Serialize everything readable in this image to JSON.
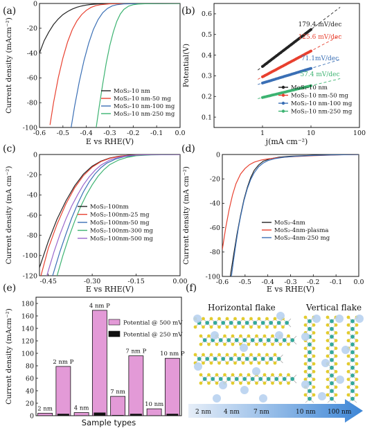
{
  "panels": {
    "a": {
      "label": "(a)"
    },
    "b": {
      "label": "(b)"
    },
    "c": {
      "label": "(c)"
    },
    "d": {
      "label": "(d)"
    },
    "e": {
      "label": "(e)"
    },
    "f": {
      "label": "(f)"
    }
  },
  "chart_data": [
    {
      "id": "a",
      "type": "line",
      "xlabel": "E vs RHE(V)",
      "ylabel": "Current density (mAcm⁻²)",
      "xlim": [
        -0.6,
        0.0
      ],
      "ylim": [
        -100,
        0
      ],
      "xticks": [
        -0.6,
        -0.5,
        -0.4,
        -0.3,
        -0.2,
        -0.1,
        0.0
      ],
      "xticklabels": [
        "-0.6",
        "-0.5",
        "-0.4",
        "-0.3",
        "-0.2",
        "-0.1",
        "0.0"
      ],
      "yticks": [
        -100,
        -80,
        -60,
        -40,
        -20,
        0
      ],
      "yticklabels": [
        "-100",
        "-80",
        "-60",
        "-40",
        "-20",
        "0"
      ],
      "legend_position": "lower-right",
      "series": [
        {
          "name": "MoS₂-10 nm",
          "color": "#222222",
          "x": [
            -0.6,
            -0.58,
            -0.56,
            -0.54,
            -0.52,
            -0.5,
            -0.48,
            -0.46,
            -0.44,
            -0.42,
            -0.4,
            -0.38,
            -0.35,
            -0.3,
            -0.2,
            -0.1,
            0.0
          ],
          "y": [
            -40,
            -30,
            -23,
            -17,
            -12.5,
            -9,
            -6.5,
            -4.5,
            -3,
            -2,
            -1.3,
            -0.8,
            -0.4,
            -0.2,
            -0.1,
            -0.05,
            0
          ]
        },
        {
          "name": "MoS₂-10 nm-50 mg",
          "color": "#e8402f",
          "x": [
            -0.555,
            -0.54,
            -0.52,
            -0.5,
            -0.48,
            -0.46,
            -0.44,
            -0.42,
            -0.4,
            -0.38,
            -0.36,
            -0.34,
            -0.3,
            -0.2,
            -0.1,
            0.0
          ],
          "y": [
            -98,
            -80,
            -60,
            -44,
            -31,
            -21,
            -14,
            -9,
            -5.5,
            -3.2,
            -1.8,
            -1,
            -0.3,
            -0.1,
            -0.05,
            0
          ]
        },
        {
          "name": "MoS₂-10 nm-100 mg",
          "color": "#3a6fb5",
          "x": [
            -0.465,
            -0.45,
            -0.43,
            -0.41,
            -0.39,
            -0.37,
            -0.35,
            -0.33,
            -0.31,
            -0.29,
            -0.27,
            -0.24,
            -0.2,
            -0.1,
            0.0
          ],
          "y": [
            -100,
            -83,
            -63,
            -46,
            -32,
            -21,
            -13,
            -7.5,
            -4,
            -2,
            -1,
            -0.4,
            -0.2,
            -0.05,
            0
          ]
        },
        {
          "name": "MoS₂-10 nm-250 mg",
          "color": "#3cb371",
          "x": [
            -0.358,
            -0.345,
            -0.33,
            -0.315,
            -0.3,
            -0.285,
            -0.27,
            -0.255,
            -0.24,
            -0.22,
            -0.2,
            -0.18,
            -0.15,
            -0.1,
            0.0
          ],
          "y": [
            -100,
            -83,
            -65,
            -48,
            -34,
            -23,
            -14.5,
            -8.5,
            -4.8,
            -2.2,
            -1,
            -0.5,
            -0.2,
            -0.05,
            0
          ]
        }
      ]
    },
    {
      "id": "b",
      "type": "scatter",
      "xlabel": "j(mA cm⁻²)",
      "ylabel": "Potential(V)",
      "xscale": "log",
      "xlim": [
        0.1,
        100
      ],
      "ylim": [
        0.05,
        0.65
      ],
      "xticks": [
        1,
        10,
        100
      ],
      "xticklabels": [
        "1",
        "10",
        "100"
      ],
      "yticks": [
        0.1,
        0.2,
        0.3,
        0.4,
        0.5,
        0.6
      ],
      "yticklabels": [
        "0.1",
        "0.2",
        "0.3",
        "0.4",
        "0.5",
        "0.6"
      ],
      "legend_position": "lower-right",
      "series": [
        {
          "name": "MoS₂-10 nm",
          "color": "#222222",
          "slope_label": "179.4 mV/dec",
          "x_range": [
            1,
            10
          ],
          "y_range": [
            0.345,
            0.524
          ]
        },
        {
          "name": "MoS₂-10 nm-50 mg",
          "color": "#e8402f",
          "slope_label": "125.6 mV/dec",
          "x_range": [
            1,
            10
          ],
          "y_range": [
            0.295,
            0.42
          ]
        },
        {
          "name": "MoS₂-10 nm-100 mg",
          "color": "#3a6fb5",
          "slope_label": "71.1mV/dec",
          "x_range": [
            1,
            10
          ],
          "y_range": [
            0.265,
            0.336
          ]
        },
        {
          "name": "MoS₂-10 nm-250 mg",
          "color": "#3cb371",
          "slope_label": "57.4 mV/dec",
          "x_range": [
            1,
            10
          ],
          "y_range": [
            0.195,
            0.252
          ]
        }
      ]
    },
    {
      "id": "c",
      "type": "line",
      "xlabel": "E vs RHE(V)",
      "ylabel": "Current density (mA cm⁻²)",
      "xlim": [
        -0.48,
        0.0
      ],
      "ylim": [
        -120,
        0
      ],
      "xticks": [
        -0.45,
        -0.3,
        -0.15,
        0.0
      ],
      "xticklabels": [
        "-0.45",
        "-0.30",
        "-0.15",
        "0.00"
      ],
      "yticks": [
        -120,
        -100,
        -80,
        -60,
        -40,
        -20,
        0
      ],
      "yticklabels": [
        "-120",
        "-100",
        "-80",
        "-60",
        "-40",
        "-20",
        "0"
      ],
      "legend_position": "lower-right",
      "series": [
        {
          "name": "MoS₂-100nm",
          "color": "#222222",
          "x": [
            -0.48,
            -0.45,
            -0.42,
            -0.39,
            -0.36,
            -0.33,
            -0.3,
            -0.27,
            -0.24,
            -0.21,
            -0.18,
            -0.15,
            -0.1,
            -0.05,
            0.0
          ],
          "y": [
            -112,
            -86,
            -64,
            -46,
            -31,
            -19.5,
            -11.5,
            -6.5,
            -3.5,
            -1.8,
            -0.9,
            -0.4,
            -0.15,
            -0.05,
            0
          ]
        },
        {
          "name": "MoS₂-100nm-25 mg",
          "color": "#e8402f",
          "x": [
            -0.475,
            -0.45,
            -0.42,
            -0.39,
            -0.36,
            -0.33,
            -0.3,
            -0.27,
            -0.24,
            -0.21,
            -0.18,
            -0.15,
            -0.1,
            0.0
          ],
          "y": [
            -120,
            -93,
            -69,
            -49,
            -33,
            -21,
            -12.5,
            -7,
            -3.8,
            -2,
            -1,
            -0.5,
            -0.15,
            0
          ]
        },
        {
          "name": "MoS₂-100nm-50 mg",
          "color": "#3a6fb5",
          "x": [
            -0.435,
            -0.41,
            -0.39,
            -0.37,
            -0.35,
            -0.33,
            -0.31,
            -0.29,
            -0.27,
            -0.25,
            -0.22,
            -0.19,
            -0.15,
            -0.1,
            0.0
          ],
          "y": [
            -120,
            -96,
            -79,
            -63,
            -49,
            -37,
            -27,
            -19,
            -13,
            -8.5,
            -4.5,
            -2.2,
            -0.9,
            -0.3,
            0
          ]
        },
        {
          "name": "MoS₂-100nm-300 mg",
          "color": "#3cb371",
          "x": [
            -0.42,
            -0.4,
            -0.38,
            -0.36,
            -0.34,
            -0.32,
            -0.3,
            -0.28,
            -0.26,
            -0.24,
            -0.21,
            -0.18,
            -0.15,
            -0.1,
            0.0
          ],
          "y": [
            -120,
            -100,
            -82,
            -66,
            -52,
            -40,
            -30,
            -21.5,
            -15,
            -10,
            -5.5,
            -2.8,
            -1.2,
            -0.4,
            0
          ]
        },
        {
          "name": "MoS₂-100nm-500 mg",
          "color": "#9966cc",
          "x": [
            -0.455,
            -0.43,
            -0.41,
            -0.39,
            -0.37,
            -0.35,
            -0.33,
            -0.31,
            -0.29,
            -0.27,
            -0.24,
            -0.21,
            -0.18,
            -0.15,
            -0.1,
            0.0
          ],
          "y": [
            -120,
            -96,
            -79,
            -64,
            -51,
            -40,
            -30,
            -22,
            -15.5,
            -10.5,
            -5.5,
            -2.8,
            -1.3,
            -0.6,
            -0.2,
            0
          ]
        }
      ]
    },
    {
      "id": "d",
      "type": "line",
      "xlabel": "E vs RHE(V)",
      "ylabel": "Current density (mA cm⁻²)",
      "xlim": [
        -0.6,
        0.0
      ],
      "ylim": [
        -100,
        0
      ],
      "xticks": [
        -0.6,
        -0.5,
        -0.4,
        -0.3,
        -0.2,
        -0.1,
        0.0
      ],
      "xticklabels": [
        "-0.6",
        "-0.5",
        "-0.4",
        "-0.3",
        "-0.2",
        "-0.1",
        "0.0"
      ],
      "yticks": [
        -100,
        -80,
        -60,
        -40,
        -20,
        0
      ],
      "yticklabels": [
        "-100",
        "-80",
        "-60",
        "-40",
        "-20",
        "0"
      ],
      "legend_position": "lower-right",
      "series": [
        {
          "name": "MoS₂-4nm",
          "color": "#222222",
          "x": [
            -0.565,
            -0.55,
            -0.535,
            -0.52,
            -0.505,
            -0.49,
            -0.475,
            -0.46,
            -0.44,
            -0.42,
            -0.39,
            -0.35,
            -0.3,
            -0.2,
            -0.1,
            0.0
          ],
          "y": [
            -100,
            -82,
            -65,
            -50,
            -37,
            -27,
            -19,
            -13,
            -8.5,
            -5.5,
            -3.5,
            -2.2,
            -1.4,
            -0.7,
            -0.3,
            0
          ]
        },
        {
          "name": "MoS₂-4nm-plasma",
          "color": "#e8402f",
          "x": [
            -0.6,
            -0.585,
            -0.57,
            -0.555,
            -0.54,
            -0.52,
            -0.5,
            -0.48,
            -0.46,
            -0.43,
            -0.4,
            -0.36,
            -0.3,
            -0.2,
            -0.1,
            0.0
          ],
          "y": [
            -78,
            -60,
            -45,
            -33,
            -24,
            -16,
            -11.5,
            -8.3,
            -6.3,
            -4.6,
            -3.6,
            -2.7,
            -1.9,
            -1,
            -0.4,
            0
          ]
        },
        {
          "name": "MoS₂-4nm-250 mg",
          "color": "#3a6fb5",
          "x": [
            -0.56,
            -0.55,
            -0.54,
            -0.53,
            -0.52,
            -0.505,
            -0.49,
            -0.475,
            -0.46,
            -0.44,
            -0.42,
            -0.4,
            -0.37,
            -0.33,
            -0.28,
            -0.2,
            -0.1,
            0.0
          ],
          "y": [
            -100,
            -86,
            -73,
            -61,
            -51,
            -38,
            -28,
            -20.5,
            -15,
            -10,
            -7,
            -5,
            -3.4,
            -2.3,
            -1.5,
            -0.8,
            -0.3,
            0
          ]
        }
      ]
    },
    {
      "id": "e",
      "type": "bar",
      "xlabel": "Sample types",
      "ylabel": "Current density (mAcm⁻²)",
      "ylim": [
        0,
        190
      ],
      "yticks": [
        0,
        20,
        40,
        60,
        80,
        100,
        120,
        140,
        160,
        180
      ],
      "yticklabels": [
        "0",
        "20",
        "40",
        "60",
        "80",
        "100",
        "120",
        "140",
        "160",
        "180"
      ],
      "legend_position": "top-right",
      "categories": [
        "2 nm",
        "2 nm P",
        "4 nm",
        "4 nm P",
        "7 nm",
        "7 nm P",
        "10 nm",
        "10 nm P"
      ],
      "series": [
        {
          "name": "Potential @ 500 mV",
          "color": "#e39ad7",
          "values": [
            4,
            79,
            5,
            169,
            31,
            96,
            11,
            92
          ]
        },
        {
          "name": "Potential @ 250 mV",
          "color": "#111111",
          "values": [
            0.5,
            3,
            0.5,
            5,
            1,
            3,
            0.5,
            3
          ]
        }
      ]
    }
  ],
  "schematic": {
    "horizontal_title": "Horizontal flake",
    "vertical_title": "Vertical flake",
    "scale_labels": [
      "2 nm",
      "4 nm",
      "7 nm",
      "10 nm",
      "100 nm"
    ],
    "colors": {
      "sulfur": "#e3cc2e",
      "molybdenum": "#35a89a",
      "sphere": "#b8d2ef",
      "arrow_start": "#e6eef8",
      "arrow_end": "#3d86d6"
    }
  }
}
